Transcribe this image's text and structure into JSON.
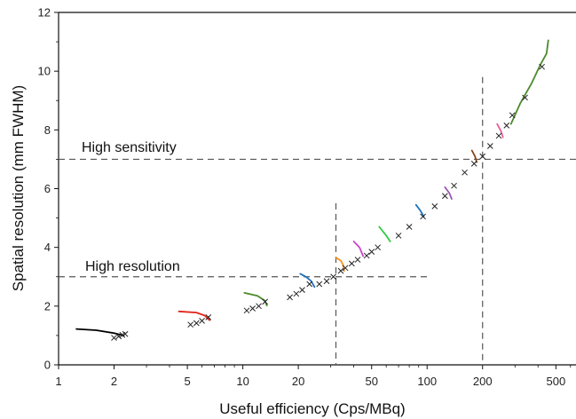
{
  "chart_data": {
    "type": "line",
    "title": "",
    "xlabel": "Useful efficiency (Cps/MBq)",
    "ylabel": "Spatial resolution  (mm FWHM)",
    "x_scale": "log",
    "xlim": [
      1,
      650
    ],
    "ylim": [
      0,
      12
    ],
    "x_ticks": [
      1,
      2,
      5,
      10,
      20,
      50,
      100,
      200,
      500
    ],
    "x_tick_labels": [
      "1",
      "2",
      "5",
      "10",
      "20",
      "50",
      "100",
      "200",
      "500"
    ],
    "y_ticks": [
      0,
      2,
      4,
      6,
      8,
      10,
      12
    ],
    "y_tick_labels": [
      "0",
      "2",
      "4",
      "6",
      "8",
      "10",
      "12"
    ],
    "annotations": [
      {
        "text": "High sensitivity",
        "y": 7,
        "x_start": 1,
        "x_end": 650,
        "x_cut": 200
      },
      {
        "text": "High resolution",
        "y": 3,
        "x_start": 1,
        "x_end": 100,
        "x_cut": 32
      }
    ],
    "series": [
      {
        "color": "#000000",
        "points": [
          [
            1.25,
            1.22
          ],
          [
            1.6,
            1.18
          ],
          [
            2.0,
            1.08
          ],
          [
            2.25,
            1.0
          ]
        ],
        "markers": [
          [
            2.0,
            0.92
          ],
          [
            2.12,
            0.97
          ],
          [
            2.22,
            1.02
          ],
          [
            2.3,
            1.05
          ]
        ]
      },
      {
        "color": "#e2231a",
        "points": [
          [
            4.5,
            1.82
          ],
          [
            5.6,
            1.78
          ],
          [
            6.2,
            1.68
          ],
          [
            6.6,
            1.52
          ]
        ],
        "markers": [
          [
            5.2,
            1.37
          ],
          [
            5.6,
            1.42
          ],
          [
            6.0,
            1.5
          ],
          [
            6.5,
            1.62
          ]
        ]
      },
      {
        "color": "#4b8a2b",
        "points": [
          [
            10.2,
            2.45
          ],
          [
            12.0,
            2.35
          ],
          [
            13.2,
            2.18
          ],
          [
            13.5,
            2.02
          ]
        ],
        "markers": [
          [
            10.5,
            1.85
          ],
          [
            11.3,
            1.92
          ],
          [
            12.2,
            2.0
          ],
          [
            13.2,
            2.15
          ]
        ]
      },
      {
        "color": "#1e73be",
        "points": [
          [
            20.5,
            3.1
          ],
          [
            22.0,
            3.0
          ],
          [
            23.5,
            2.85
          ],
          [
            24.5,
            2.65
          ]
        ],
        "markers": [
          [
            18.0,
            2.3
          ],
          [
            19.5,
            2.42
          ],
          [
            21.0,
            2.55
          ],
          [
            23.0,
            2.75
          ]
        ]
      },
      {
        "color": "#f7941d",
        "points": [
          [
            32.0,
            3.65
          ],
          [
            34.0,
            3.55
          ],
          [
            35.0,
            3.4
          ],
          [
            35.5,
            3.2
          ]
        ],
        "markers": [
          [
            26.0,
            2.75
          ],
          [
            28.5,
            2.85
          ],
          [
            31.0,
            3.0
          ],
          [
            34.0,
            3.2
          ]
        ]
      },
      {
        "color": "#cc44cc",
        "points": [
          [
            40.0,
            4.2
          ],
          [
            43.0,
            4.0
          ],
          [
            45.0,
            3.7
          ]
        ],
        "markers": [
          [
            36.0,
            3.3
          ],
          [
            39.0,
            3.45
          ],
          [
            42.0,
            3.58
          ]
        ]
      },
      {
        "color": "#2ecc40",
        "points": [
          [
            55.0,
            4.7
          ],
          [
            60.0,
            4.4
          ],
          [
            63.0,
            4.2
          ]
        ],
        "markers": [
          [
            47.0,
            3.72
          ],
          [
            50.0,
            3.85
          ],
          [
            54.0,
            4.0
          ]
        ]
      },
      {
        "color": "#1e73be",
        "points": [
          [
            87.0,
            5.45
          ],
          [
            92.0,
            5.25
          ],
          [
            96.0,
            5.05
          ]
        ],
        "markers": [
          [
            70.0,
            4.4
          ],
          [
            80.0,
            4.7
          ],
          [
            95.0,
            5.05
          ]
        ]
      },
      {
        "color": "#9b59b6",
        "points": [
          [
            125.0,
            6.05
          ],
          [
            132.0,
            5.85
          ],
          [
            136.0,
            5.65
          ]
        ],
        "markers": [
          [
            110.0,
            5.4
          ],
          [
            125.0,
            5.75
          ],
          [
            140.0,
            6.1
          ]
        ]
      },
      {
        "color": "#8b4513",
        "points": [
          [
            175.0,
            7.3
          ],
          [
            182.0,
            7.1
          ],
          [
            186.0,
            6.9
          ]
        ],
        "markers": [
          [
            160.0,
            6.55
          ],
          [
            180.0,
            6.85
          ],
          [
            200.0,
            7.1
          ]
        ]
      },
      {
        "color": "#e85d9c",
        "points": [
          [
            240.0,
            8.2
          ],
          [
            252.0,
            7.95
          ],
          [
            258.0,
            7.75
          ]
        ],
        "markers": [
          [
            220.0,
            7.45
          ],
          [
            245.0,
            7.8
          ],
          [
            270.0,
            8.15
          ]
        ]
      },
      {
        "color": "#4b8a2b",
        "points": [
          [
            285.0,
            8.2
          ],
          [
            320.0,
            8.9
          ],
          [
            370.0,
            9.6
          ],
          [
            410.0,
            10.2
          ],
          [
            445.0,
            10.6
          ],
          [
            455.0,
            11.05
          ]
        ],
        "markers": [
          [
            290.0,
            8.5
          ],
          [
            340.0,
            9.1
          ],
          [
            420.0,
            10.15
          ]
        ]
      }
    ]
  }
}
